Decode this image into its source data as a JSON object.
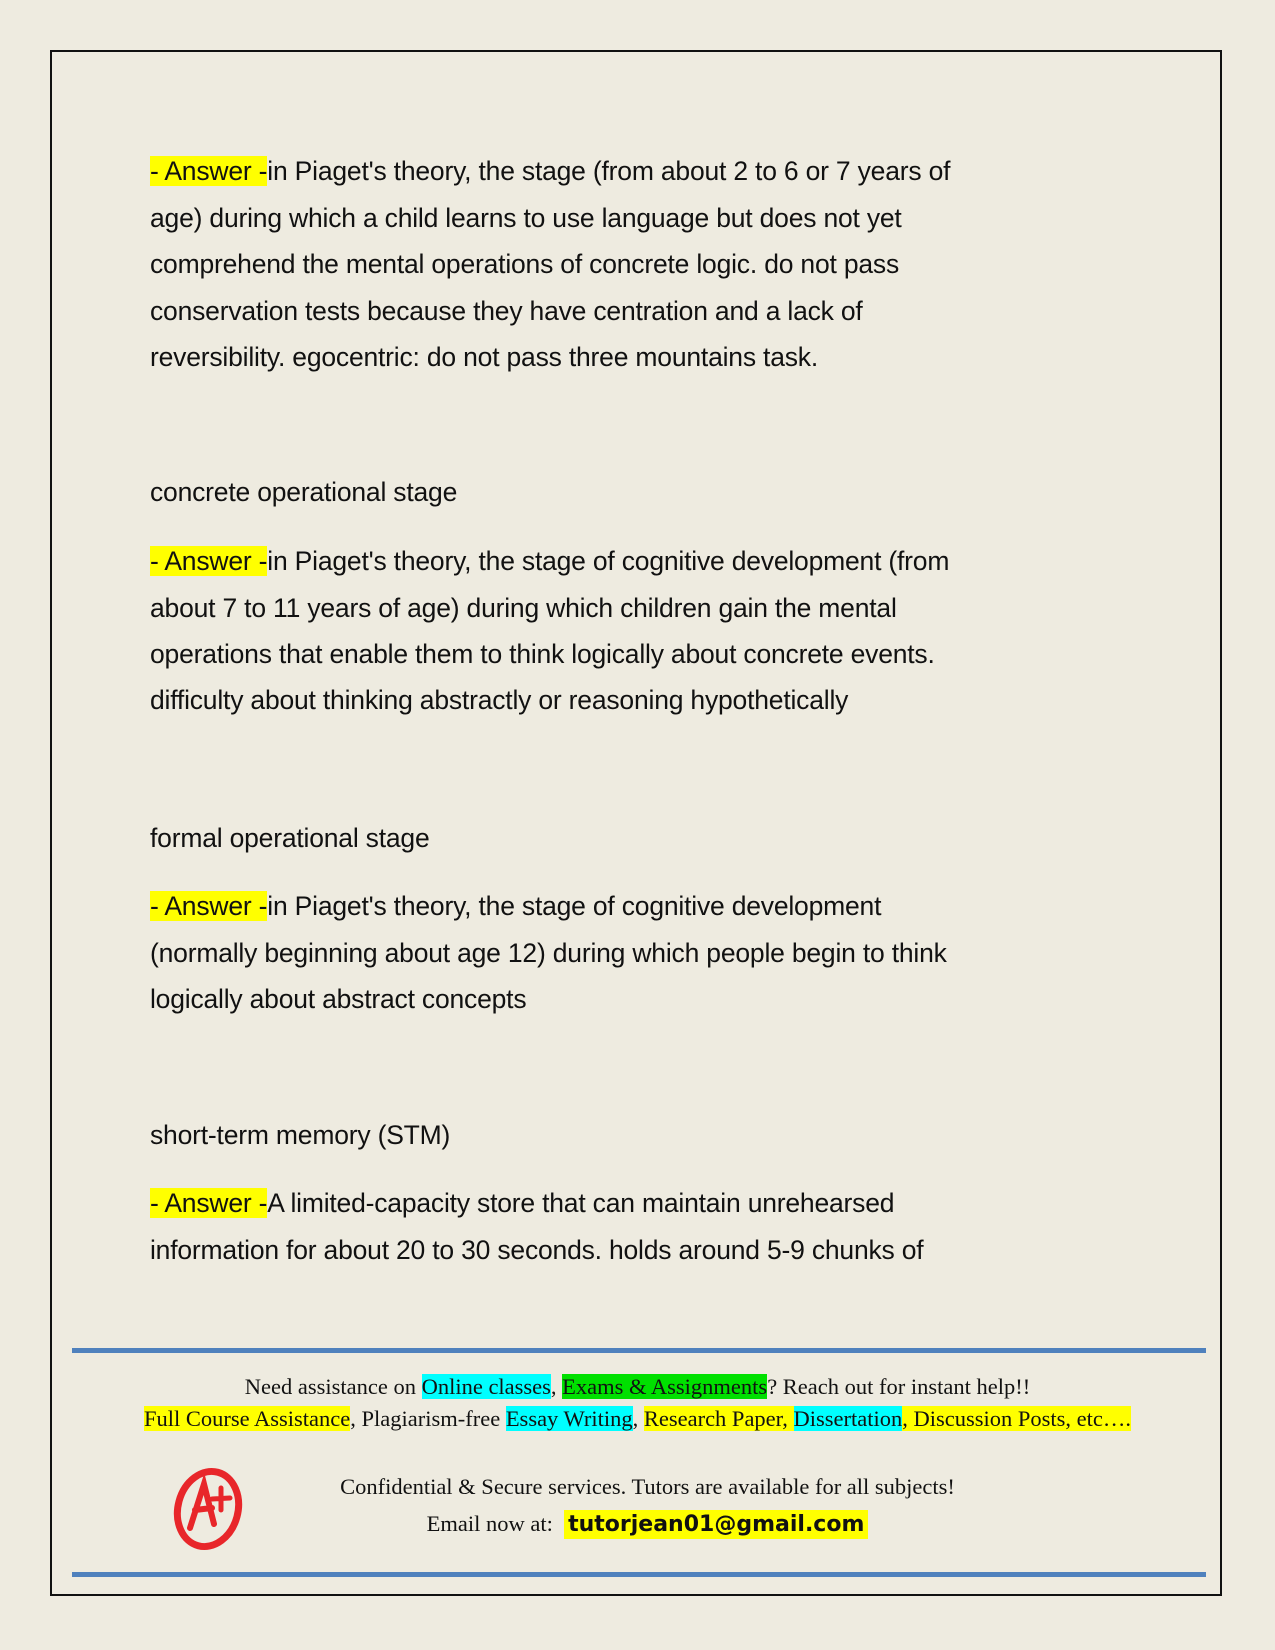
{
  "answer_label": "- Answer -",
  "entries": [
    {
      "term": "",
      "answer_lines": [
        "in Piaget's theory, the stage (from about 2 to 6 or 7 years of",
        "age) during which a child learns to use language but does not yet",
        "comprehend the mental operations of concrete logic. do not pass",
        "conservation tests because they have centration and a lack of",
        "reversibility. egocentric: do not pass three mountains task."
      ]
    },
    {
      "term": "concrete operational stage",
      "answer_lines": [
        "in Piaget's theory, the stage of cognitive development (from",
        "about 7 to 11 years of age) during which children gain the mental",
        "operations that enable them to think logically about concrete events.",
        "difficulty about thinking abstractly or reasoning hypothetically"
      ]
    },
    {
      "term": "formal operational stage",
      "answer_lines": [
        "in Piaget's theory, the stage of cognitive development",
        "(normally beginning about age 12) during which people begin to think",
        "logically about abstract concepts"
      ]
    },
    {
      "term": "short-term memory (STM)",
      "answer_lines": [
        "A limited-capacity store that can maintain unrehearsed",
        "information for about 20 to 30 seconds. holds around 5-9 chunks of"
      ]
    }
  ],
  "footer": {
    "l1": [
      "Need assistance on ",
      "Online classes",
      ", ",
      "Exams & Assignments",
      "? Reach out for instant help!!"
    ],
    "l2": [
      "Full Course Assistance",
      ", Plagiarism-free ",
      "Essay Writing",
      ", ",
      "Research Paper, ",
      "Dissertation",
      ", Discussion Posts, etc…."
    ],
    "l3": "Confidential & Secure services. Tutors are available for all subjects!",
    "l4_label": "Email now at:",
    "email": "tutorjean01@gmail.com",
    "logo_text": "A+",
    "colors": {
      "rule": "#4f81bd",
      "yellow": "#ffff00",
      "cyan": "#00ffff",
      "green": "#00e000",
      "logo": "#e8262a"
    }
  }
}
